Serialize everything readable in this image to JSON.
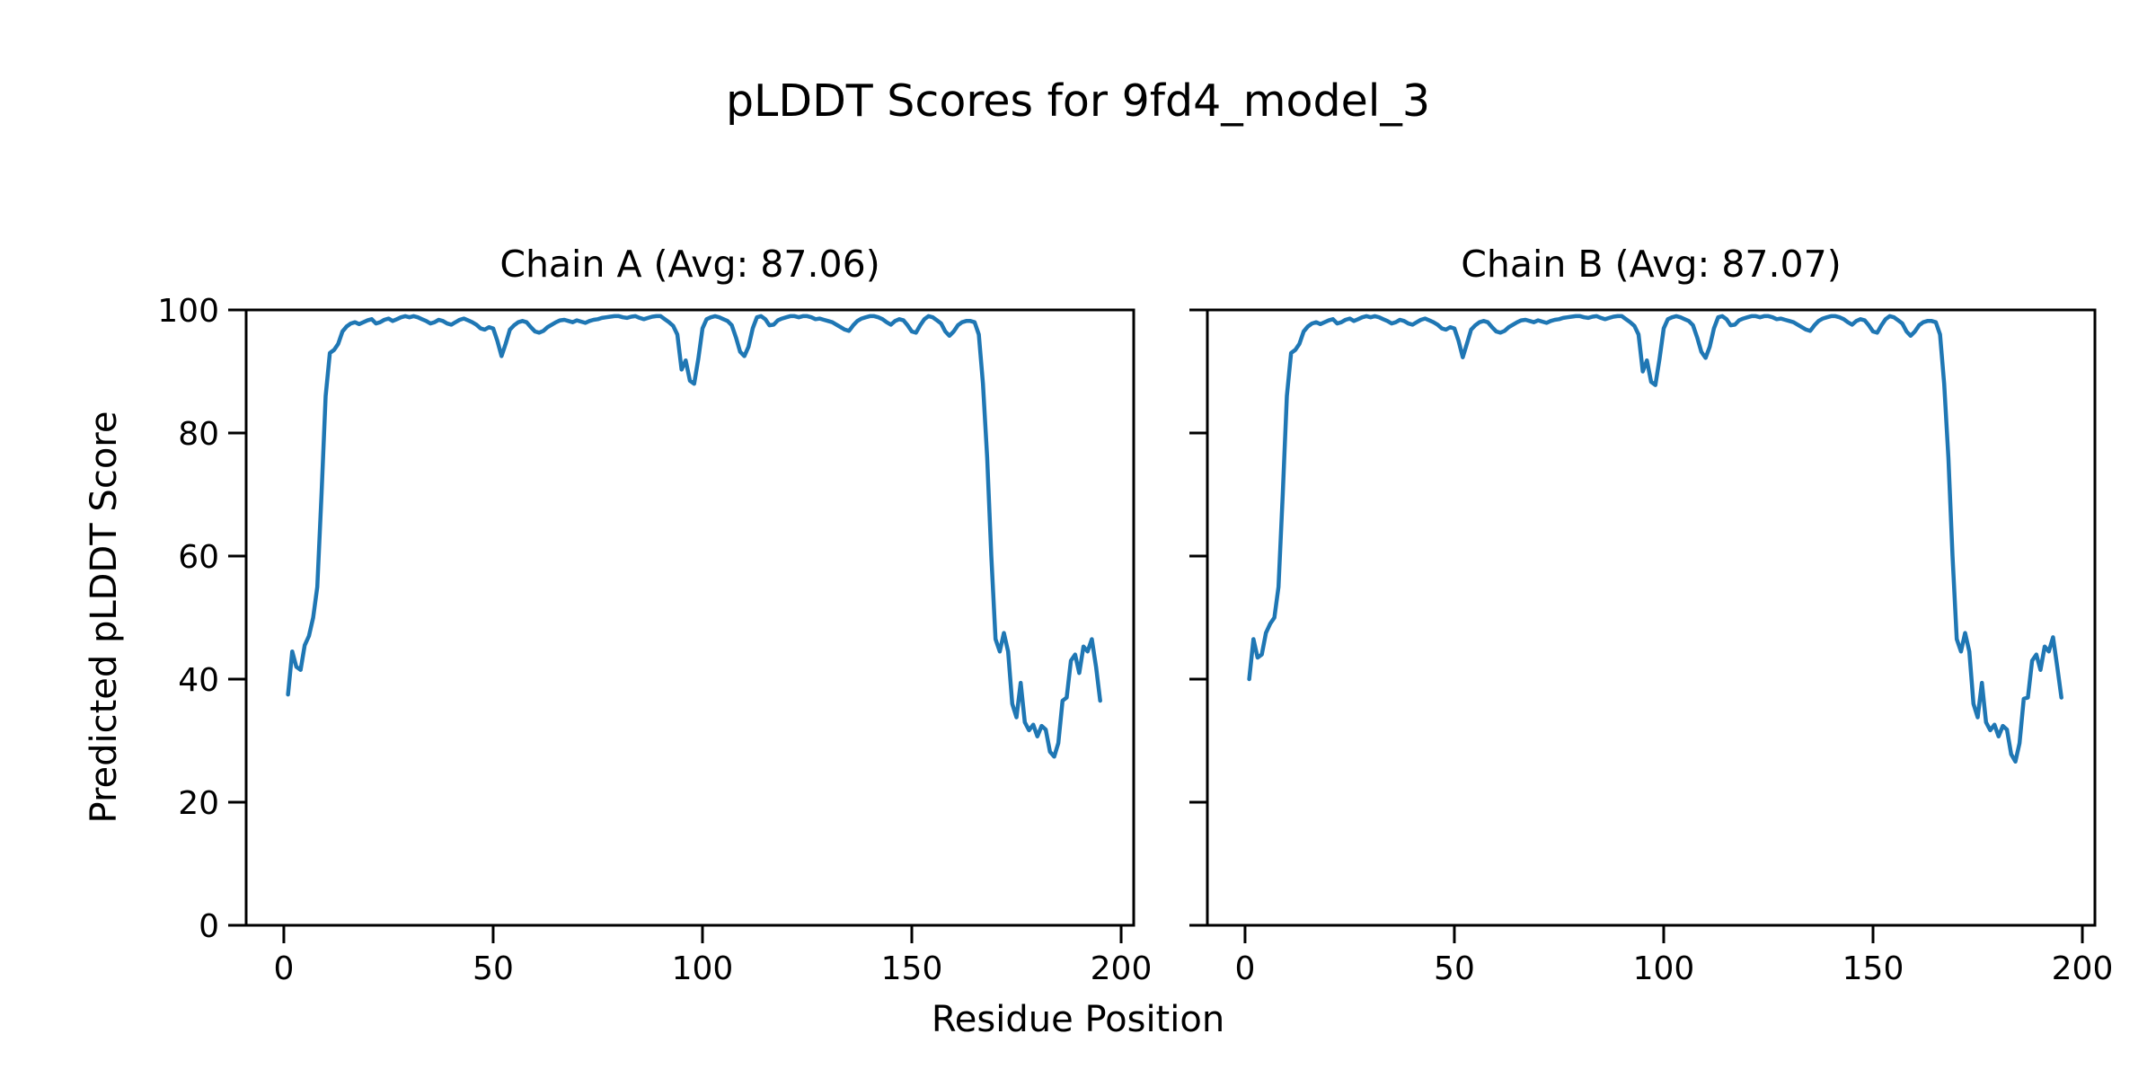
{
  "figure": {
    "title": "pLDDT Scores for 9fd4_model_3",
    "background": "#ffffff"
  },
  "axis": {
    "x_label": "Residue Position",
    "y_label": "Predicted pLDDT Score"
  },
  "chart_data": {
    "type": "line",
    "title": "pLDDT Scores for 9fd4_model_3",
    "xlabel": "Residue Position",
    "ylabel": "Predicted pLDDT Score",
    "line_color": "#1f77b4",
    "axis_color": "#000000",
    "xlim": [
      -9,
      203
    ],
    "ylim": [
      0,
      100
    ],
    "x_ticks": [
      0,
      50,
      100,
      150,
      200
    ],
    "y_ticks": [
      0,
      20,
      40,
      60,
      80,
      100
    ],
    "grid": false,
    "legend": "none",
    "x_start_residue": 1,
    "subplots": [
      {
        "title": "Chain A (Avg: 87.06)",
        "chain": "A",
        "avg": 87.06,
        "values": [
          37.5,
          44.5,
          42.0,
          41.5,
          45.5,
          47.0,
          50.0,
          55.0,
          70.0,
          86.0,
          93.0,
          93.5,
          94.5,
          96.5,
          97.3,
          97.8,
          98.0,
          97.7,
          98.0,
          98.3,
          98.5,
          97.8,
          98.0,
          98.4,
          98.6,
          98.2,
          98.5,
          98.8,
          99.0,
          98.8,
          99.0,
          98.8,
          98.5,
          98.2,
          97.8,
          98.0,
          98.4,
          98.2,
          97.8,
          97.6,
          98.0,
          98.4,
          98.6,
          98.3,
          98.0,
          97.6,
          97.0,
          96.8,
          97.2,
          97.0,
          95.0,
          92.5,
          94.5,
          96.8,
          97.5,
          98.0,
          98.2,
          98.0,
          97.2,
          96.5,
          96.3,
          96.6,
          97.2,
          97.6,
          98.0,
          98.3,
          98.4,
          98.2,
          98.0,
          98.3,
          98.1,
          97.9,
          98.2,
          98.4,
          98.5,
          98.7,
          98.8,
          98.9,
          99.0,
          99.0,
          98.8,
          98.7,
          98.9,
          99.0,
          98.7,
          98.5,
          98.7,
          98.9,
          99.0,
          99.0,
          98.5,
          98.0,
          97.4,
          96.0,
          90.3,
          91.8,
          88.5,
          88.0,
          92.0,
          97.0,
          98.5,
          98.8,
          99.0,
          98.8,
          98.5,
          98.2,
          97.5,
          95.5,
          93.2,
          92.5,
          94.0,
          97.0,
          98.8,
          99.0,
          98.5,
          97.5,
          97.6,
          98.3,
          98.6,
          98.8,
          99.0,
          99.0,
          98.8,
          99.0,
          99.0,
          98.8,
          98.5,
          98.6,
          98.4,
          98.2,
          98.0,
          97.6,
          97.2,
          96.8,
          96.6,
          97.5,
          98.2,
          98.6,
          98.8,
          99.0,
          99.0,
          98.8,
          98.5,
          98.0,
          97.6,
          98.2,
          98.5,
          98.3,
          97.5,
          96.5,
          96.3,
          97.5,
          98.5,
          99.0,
          98.8,
          98.3,
          97.8,
          96.5,
          95.8,
          96.5,
          97.5,
          98.0,
          98.2,
          98.2,
          98.0,
          96.0,
          88.0,
          76.0,
          60.0,
          46.5,
          44.5,
          47.5,
          44.5,
          36.0,
          33.8,
          39.4,
          33.0,
          31.7,
          32.6,
          30.7,
          32.4,
          31.8,
          28.2,
          27.4,
          29.6,
          36.5,
          37.0,
          43.0,
          44.0,
          41.0,
          45.3,
          44.5,
          46.5,
          42.0,
          36.5
        ]
      },
      {
        "title": "Chain B (Avg: 87.07)",
        "chain": "B",
        "avg": 87.07,
        "values": [
          40.0,
          46.5,
          43.5,
          44.0,
          47.5,
          49.0,
          50.0,
          55.0,
          70.0,
          86.0,
          93.0,
          93.5,
          94.5,
          96.5,
          97.3,
          97.8,
          98.0,
          97.7,
          98.0,
          98.3,
          98.5,
          97.8,
          98.0,
          98.4,
          98.6,
          98.2,
          98.5,
          98.8,
          99.0,
          98.8,
          99.0,
          98.8,
          98.5,
          98.2,
          97.8,
          98.0,
          98.4,
          98.2,
          97.8,
          97.6,
          98.0,
          98.4,
          98.6,
          98.3,
          98.0,
          97.6,
          97.0,
          96.8,
          97.2,
          97.0,
          95.0,
          92.3,
          94.5,
          96.8,
          97.5,
          98.0,
          98.2,
          98.0,
          97.2,
          96.5,
          96.3,
          96.6,
          97.2,
          97.6,
          98.0,
          98.3,
          98.4,
          98.2,
          98.0,
          98.3,
          98.1,
          97.9,
          98.2,
          98.4,
          98.5,
          98.7,
          98.8,
          98.9,
          99.0,
          99.0,
          98.8,
          98.7,
          98.9,
          99.0,
          98.7,
          98.5,
          98.7,
          98.9,
          99.0,
          99.0,
          98.5,
          98.0,
          97.4,
          96.0,
          90.0,
          91.8,
          88.3,
          87.8,
          92.0,
          97.0,
          98.5,
          98.8,
          99.0,
          98.8,
          98.5,
          98.2,
          97.5,
          95.5,
          93.2,
          92.2,
          94.0,
          97.0,
          98.8,
          99.0,
          98.5,
          97.5,
          97.6,
          98.3,
          98.6,
          98.8,
          99.0,
          99.0,
          98.8,
          99.0,
          99.0,
          98.8,
          98.5,
          98.6,
          98.4,
          98.2,
          98.0,
          97.6,
          97.2,
          96.8,
          96.6,
          97.5,
          98.2,
          98.6,
          98.8,
          99.0,
          99.0,
          98.8,
          98.5,
          98.0,
          97.6,
          98.2,
          98.5,
          98.3,
          97.5,
          96.5,
          96.3,
          97.5,
          98.5,
          99.0,
          98.8,
          98.3,
          97.8,
          96.5,
          95.8,
          96.5,
          97.5,
          98.0,
          98.2,
          98.2,
          98.0,
          96.0,
          88.0,
          76.0,
          60.0,
          46.5,
          44.5,
          47.5,
          44.5,
          36.0,
          33.8,
          39.4,
          33.0,
          31.7,
          32.6,
          30.7,
          32.4,
          31.8,
          27.8,
          26.6,
          29.6,
          36.8,
          37.0,
          43.0,
          44.0,
          41.5,
          45.3,
          44.5,
          46.8,
          42.0,
          37.0
        ]
      }
    ]
  }
}
